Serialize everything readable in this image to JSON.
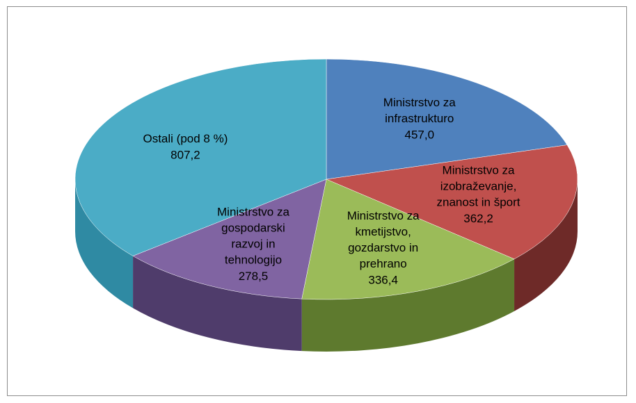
{
  "chart_data": {
    "type": "pie",
    "categories": [
      "Ministrstvo za infrastrukturo",
      "Ministrstvo za izobraževanje, znanost in šport",
      "Ministrstvo za kmetijstvo, gozdarstvo in prehrano",
      "Ministrstvo za gospodarski razvoj in tehnologijo",
      "Ostali (pod 8 %)"
    ],
    "values": [
      457.0,
      362.2,
      336.4,
      278.5,
      807.2
    ],
    "value_labels": [
      "457,0",
      "362,2",
      "336,4",
      "278,5",
      "807,2"
    ],
    "colors": [
      "#4f81bd",
      "#c0504d",
      "#9bbb59",
      "#8064a2",
      "#4bacc6"
    ],
    "side_colors": [
      "#3a6190",
      "#6e2a28",
      "#5e7a2e",
      "#4f3c6b",
      "#2f8aa3"
    ]
  }
}
